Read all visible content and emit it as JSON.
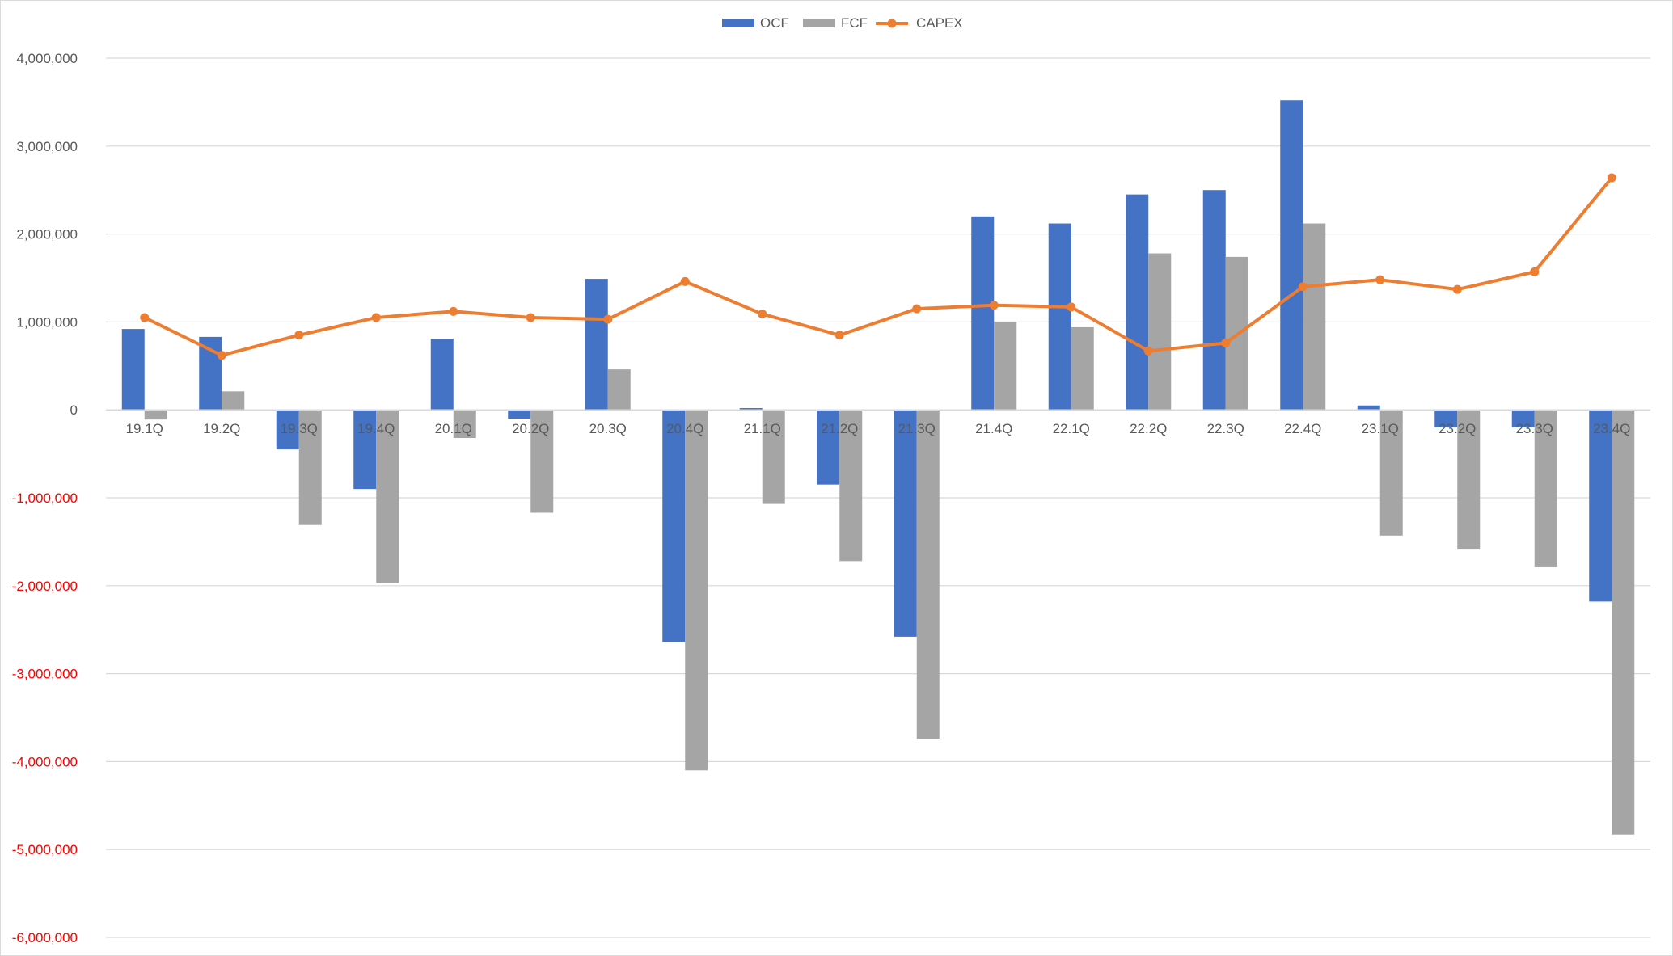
{
  "chart_data": {
    "type": "bar",
    "categories": [
      "19.1Q",
      "19.2Q",
      "19.3Q",
      "19.4Q",
      "20.1Q",
      "20.2Q",
      "20.3Q",
      "20.4Q",
      "21.1Q",
      "21.2Q",
      "21.3Q",
      "21.4Q",
      "22.1Q",
      "22.2Q",
      "22.3Q",
      "22.4Q",
      "23.1Q",
      "23.2Q",
      "23.3Q",
      "23.4Q"
    ],
    "series": [
      {
        "name": "OCF",
        "kind": "bar",
        "color": "#4472c4",
        "values": [
          920000,
          830000,
          -450000,
          -900000,
          810000,
          -100000,
          1490000,
          -2640000,
          20000,
          -850000,
          -2580000,
          2200000,
          2120000,
          2450000,
          2500000,
          3520000,
          50000,
          -200000,
          -200000,
          -2180000
        ]
      },
      {
        "name": "FCF",
        "kind": "bar",
        "color": "#a5a5a5",
        "values": [
          -110000,
          210000,
          -1310000,
          -1970000,
          -320000,
          -1170000,
          460000,
          -4100000,
          -1070000,
          -1720000,
          -3740000,
          1000000,
          940000,
          1780000,
          1740000,
          2120000,
          -1430000,
          -1580000,
          -1790000,
          -4830000
        ]
      },
      {
        "name": "CAPEX",
        "kind": "line",
        "color": "#ed7d31",
        "values": [
          1050000,
          620000,
          850000,
          1050000,
          1120000,
          1050000,
          1030000,
          1460000,
          1090000,
          850000,
          1150000,
          1190000,
          1170000,
          670000,
          760000,
          1400000,
          1480000,
          1370000,
          1570000,
          2640000
        ]
      }
    ],
    "ylim": [
      -6000000,
      4000000
    ],
    "yticks": [
      {
        "value": 4000000,
        "label": "4,000,000"
      },
      {
        "value": 3000000,
        "label": "3,000,000"
      },
      {
        "value": 2000000,
        "label": "2,000,000"
      },
      {
        "value": 1000000,
        "label": "1,000,000"
      },
      {
        "value": 0,
        "label": "0"
      },
      {
        "value": -1000000,
        "label": "-1,000,000"
      },
      {
        "value": -2000000,
        "label": "-2,000,000"
      },
      {
        "value": -3000000,
        "label": "-3,000,000"
      },
      {
        "value": -4000000,
        "label": "-4,000,000"
      },
      {
        "value": -5000000,
        "label": "-5,000,000"
      },
      {
        "value": -6000000,
        "label": "-6,000,000"
      }
    ],
    "positive_tick_color": "#595959",
    "negative_tick_color": "#ff0000",
    "gridline_color": "#d9d9d9",
    "grid": true,
    "legend_position": "top-center",
    "title": "",
    "xlabel": "",
    "ylabel": ""
  }
}
